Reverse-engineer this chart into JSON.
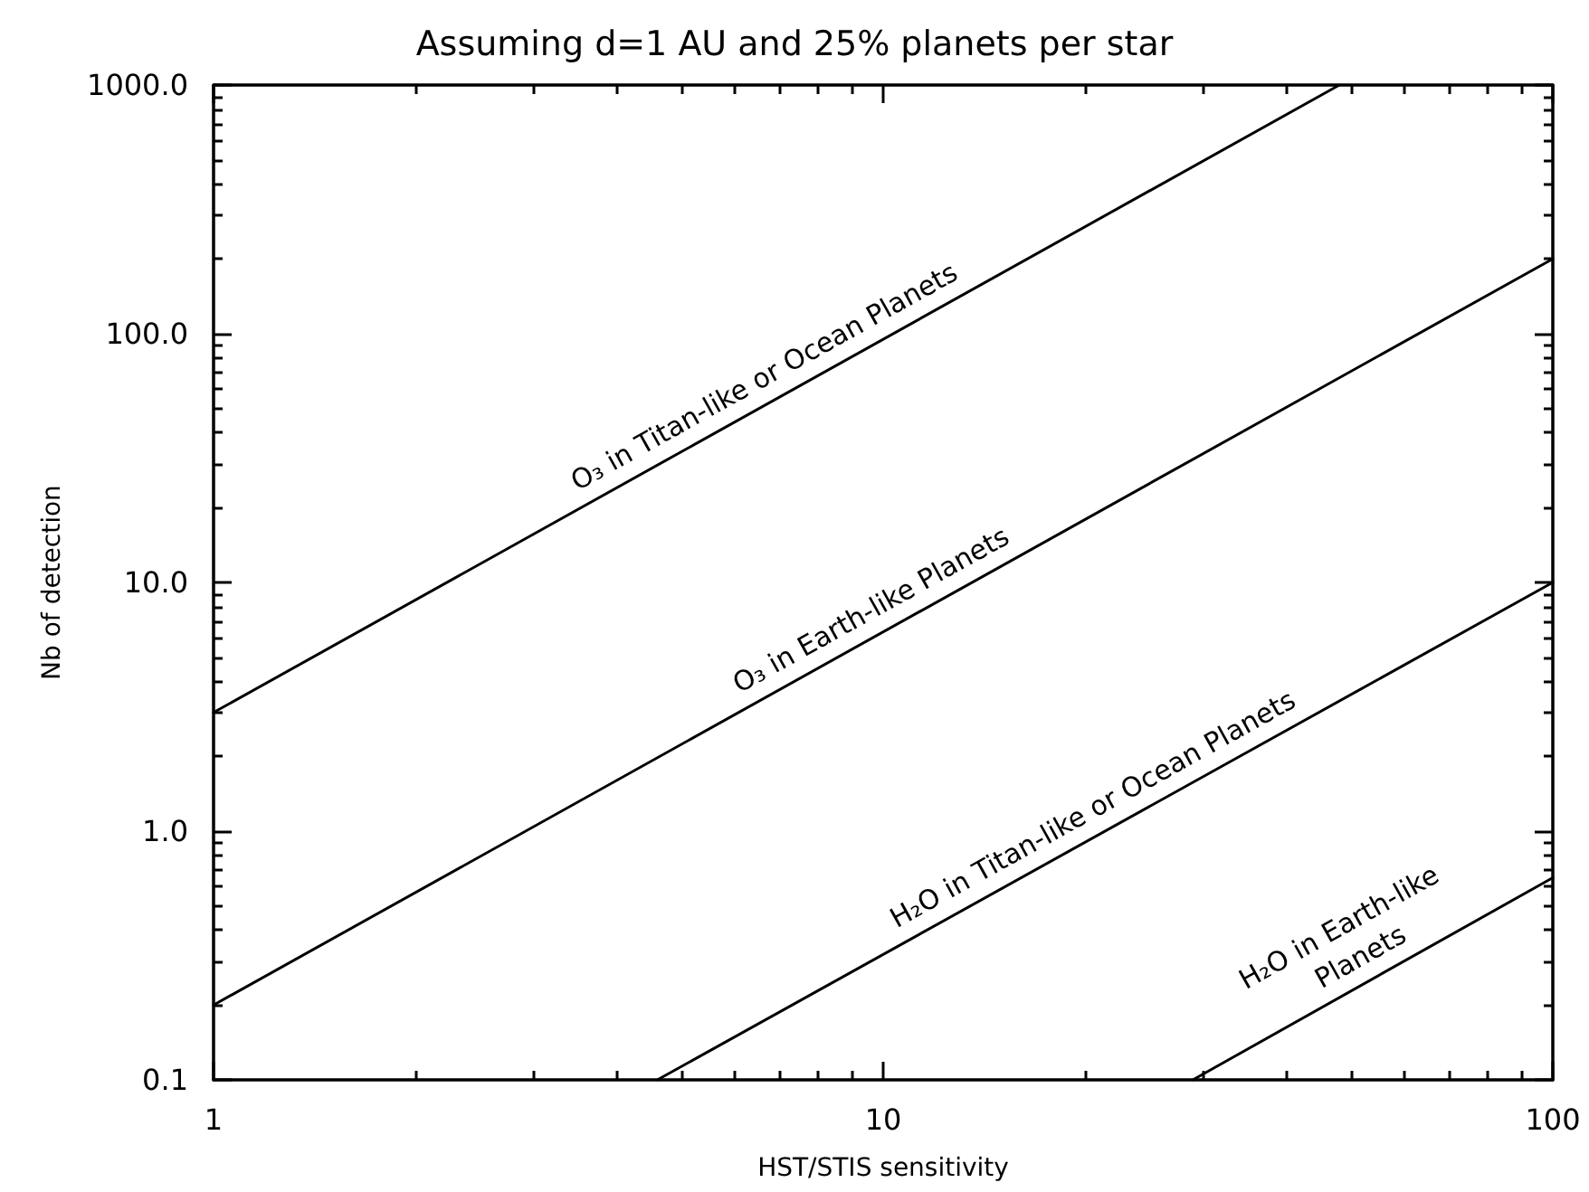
{
  "chart_data": {
    "type": "line",
    "title": "Assuming d=1 AU and 25% planets per star",
    "xlabel": "HST/STIS sensitivity",
    "ylabel": "Nb of detection",
    "log": "xy",
    "marker": "none",
    "line_style": "solid",
    "xlim": [
      1,
      100
    ],
    "ylim": [
      0.1,
      1000
    ],
    "xticks": [
      1,
      {
        "value": 2,
        "label": null
      },
      {
        "value": 3,
        "label": null
      },
      {
        "value": 4,
        "label": null
      },
      {
        "value": 5,
        "label": null
      },
      {
        "value": 6,
        "label": null
      },
      {
        "value": 7,
        "label": null
      },
      {
        "value": 8,
        "label": null
      },
      {
        "value": 9,
        "label": null
      },
      10,
      {
        "value": 20,
        "label": null
      },
      {
        "value": 30,
        "label": null
      },
      {
        "value": 40,
        "label": null
      },
      {
        "value": 50,
        "label": null
      },
      {
        "value": 60,
        "label": null
      },
      {
        "value": 70,
        "label": null
      },
      {
        "value": 80,
        "label": null
      },
      {
        "value": 90,
        "label": null
      },
      100
    ],
    "yticks": [
      0.1,
      {
        "value": 0.2,
        "label": null
      },
      {
        "value": 0.3,
        "label": null
      },
      {
        "value": 0.4,
        "label": null
      },
      {
        "value": 0.5,
        "label": null
      },
      {
        "value": 0.6,
        "label": null
      },
      {
        "value": 0.7,
        "label": null
      },
      {
        "value": 0.8,
        "label": null
      },
      {
        "value": 0.9,
        "label": null
      },
      {
        "value": 1,
        "label": "1.0"
      },
      {
        "value": 2,
        "label": null
      },
      {
        "value": 3,
        "label": null
      },
      {
        "value": 4,
        "label": null
      },
      {
        "value": 5,
        "label": null
      },
      {
        "value": 6,
        "label": null
      },
      {
        "value": 7,
        "label": null
      },
      {
        "value": 8,
        "label": null
      },
      {
        "value": 9,
        "label": null
      },
      {
        "value": 10,
        "label": "10.0"
      },
      {
        "value": 20,
        "label": null
      },
      {
        "value": 30,
        "label": null
      },
      {
        "value": 40,
        "label": null
      },
      {
        "value": 50,
        "label": null
      },
      {
        "value": 60,
        "label": null
      },
      {
        "value": 70,
        "label": null
      },
      {
        "value": 80,
        "label": null
      },
      {
        "value": 90,
        "label": null
      },
      {
        "value": 100,
        "label": "100.0"
      },
      {
        "value": 200,
        "label": null
      },
      {
        "value": 300,
        "label": null
      },
      {
        "value": 400,
        "label": null
      },
      {
        "value": 500,
        "label": null
      },
      {
        "value": 600,
        "label": null
      },
      {
        "value": 700,
        "label": null
      },
      {
        "value": 800,
        "label": null
      },
      {
        "value": 900,
        "label": null
      },
      {
        "value": 1000,
        "label": "1000.0"
      }
    ],
    "series": [
      {
        "name": "O₃ in Titan-like or Ocean Planets",
        "color": "#000000",
        "x": [
          1,
          48
        ],
        "values": [
          3,
          1000
        ]
      },
      {
        "name": "O₃ in Earth-like Planets",
        "color": "#000000",
        "x": [
          1,
          100
        ],
        "values": [
          0.2,
          200
        ]
      },
      {
        "name": "H₂O in Titan-like or Ocean Planets",
        "color": "#000000",
        "x": [
          4.6,
          100
        ],
        "values": [
          0.1,
          10
        ]
      },
      {
        "name": "H₂O in Earth-like Planets",
        "color": "#000000",
        "x": [
          29,
          100
        ],
        "values": [
          0.1,
          0.65
        ]
      }
    ]
  }
}
